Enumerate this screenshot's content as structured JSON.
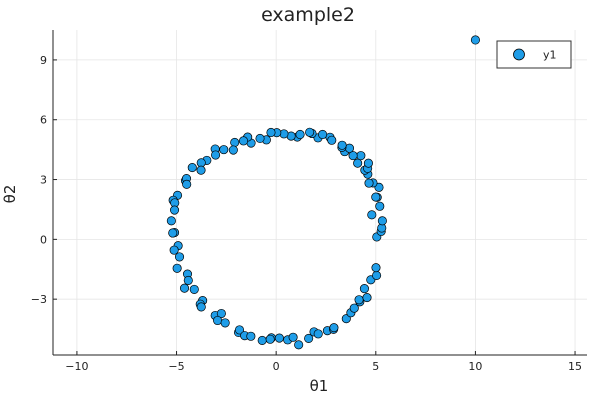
{
  "chart_data": {
    "type": "scatter",
    "title": "example2",
    "xlabel": "θ1",
    "ylabel": "θ2",
    "xlim": [
      -11.2,
      15.6
    ],
    "ylim": [
      -5.8,
      10.5
    ],
    "xticks": [
      {
        "value": -10,
        "label": "−10"
      },
      {
        "value": -5,
        "label": "−5"
      },
      {
        "value": 0,
        "label": "0"
      },
      {
        "value": 5,
        "label": "5"
      },
      {
        "value": 10,
        "label": "10"
      },
      {
        "value": 15,
        "label": "15"
      }
    ],
    "yticks": [
      {
        "value": -3,
        "label": "−3"
      },
      {
        "value": 0,
        "label": "0"
      },
      {
        "value": 3,
        "label": "3"
      },
      {
        "value": 6,
        "label": "6"
      },
      {
        "value": 9,
        "label": "9"
      }
    ],
    "grid": true,
    "legend_position": "top-right",
    "series": [
      {
        "name": "y1",
        "color": "#1f9de8",
        "description_points": "ring of points centered near (0, 0) with radius about 5.1, plus one outlier",
        "x": [
          5.05,
          5.27,
          5.3,
          5.33,
          4.8,
          5.2,
          5.07,
          5.0,
          5.16,
          4.86,
          4.66,
          4.6,
          4.45,
          4.59,
          4.63,
          4.09,
          4.25,
          3.86,
          3.44,
          3.68,
          3.3,
          3.31,
          2.7,
          2.79,
          2.1,
          2.33,
          1.8,
          1.68,
          1.06,
          1.2,
          0.75,
          0.39,
          0.03,
          -0.26,
          -0.49,
          -0.81,
          -1.26,
          -1.43,
          -1.64,
          -2.08,
          -2.15,
          -2.63,
          -3.06,
          -3.04,
          -3.48,
          -3.76,
          -3.77,
          -4.21,
          -4.55,
          -4.5,
          -4.49,
          -4.95,
          -5.17,
          -5.09,
          -5.1,
          -5.26,
          -5.1,
          -5.19,
          -4.92,
          -5.12,
          -4.85,
          -4.97,
          -4.45,
          -4.41,
          -4.6,
          -4.11,
          -3.69,
          -3.81,
          -3.76,
          -3.06,
          -2.75,
          -2.94,
          -2.56,
          -1.89,
          -1.84,
          -1.58,
          -1.27,
          -0.7,
          -0.24,
          -0.3,
          0.16,
          0.58,
          0.85,
          1.13,
          1.63,
          1.9,
          2.11,
          2.57,
          2.88,
          2.9,
          3.52,
          3.75,
          3.92,
          4.2,
          4.16,
          4.56,
          4.43,
          4.75,
          5.04,
          5.01,
          10.0
        ],
        "y": [
          0.12,
          0.4,
          0.57,
          0.93,
          1.23,
          1.66,
          2.11,
          2.12,
          2.61,
          2.83,
          2.82,
          3.27,
          3.47,
          3.56,
          3.82,
          3.82,
          4.2,
          4.2,
          4.4,
          4.57,
          4.61,
          4.72,
          5.12,
          4.97,
          5.09,
          5.26,
          5.31,
          5.37,
          5.13,
          5.26,
          5.18,
          5.29,
          5.35,
          5.36,
          4.99,
          5.06,
          4.83,
          5.13,
          4.94,
          4.86,
          4.48,
          4.5,
          4.53,
          4.23,
          3.96,
          3.84,
          3.47,
          3.6,
          2.94,
          3.05,
          2.76,
          2.21,
          1.96,
          1.83,
          1.47,
          0.93,
          0.34,
          0.32,
          -0.32,
          -0.54,
          -0.88,
          -1.45,
          -1.74,
          -2.06,
          -2.45,
          -2.51,
          -3.07,
          -3.25,
          -3.39,
          -3.82,
          -3.72,
          -4.07,
          -4.19,
          -4.67,
          -4.54,
          -4.83,
          -4.86,
          -5.07,
          -4.94,
          -5.01,
          -4.95,
          -5.04,
          -4.91,
          -5.29,
          -4.97,
          -4.64,
          -4.74,
          -4.58,
          -4.51,
          -4.43,
          -3.98,
          -3.68,
          -3.45,
          -3.13,
          -3.03,
          -2.92,
          -2.47,
          -2.03,
          -1.81,
          -1.42,
          10.0
        ]
      }
    ]
  }
}
